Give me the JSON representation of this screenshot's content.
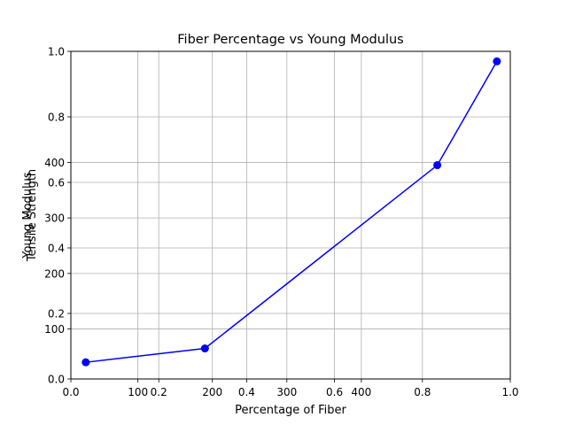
{
  "chart_data": {
    "type": "line",
    "title": "Fiber Percentage vs Young Modulus",
    "xlabel": "Percentage of Fiber",
    "ylabel": "Young Modulus",
    "ylabel_overlay": "Tensile Strength",
    "grid": true,
    "series": [
      {
        "color": "#0000ff",
        "marker": "circle",
        "x": [
          30,
          190,
          502,
          582
        ],
        "y": [
          40,
          65,
          395,
          582
        ]
      }
    ],
    "data_axes": {
      "xlim": [
        10,
        600
      ],
      "ylim": [
        10,
        600
      ],
      "xticks": [
        100,
        200,
        300,
        400
      ],
      "xtick_labels": [
        "100",
        "200",
        "300",
        "400"
      ],
      "yticks": [
        100,
        200,
        300,
        400
      ],
      "ytick_labels": [
        "100",
        "200",
        "300",
        "400"
      ]
    },
    "overlay_axes": {
      "xlim": [
        0.0,
        1.0
      ],
      "ylim": [
        0.0,
        1.0
      ],
      "xticks": [
        0.0,
        0.2,
        0.4,
        0.6,
        0.8,
        1.0
      ],
      "xtick_labels": [
        "0.0",
        "0.2",
        "0.4",
        "0.6",
        "0.8",
        "1.0"
      ],
      "yticks": [
        0.0,
        0.2,
        0.4,
        0.6,
        0.8,
        1.0
      ],
      "ytick_labels": [
        "0.0",
        "0.2",
        "0.4",
        "0.6",
        "0.8",
        "1.0"
      ]
    },
    "colors": {
      "line": "#0000ff",
      "grid": "#b0b0b0",
      "axes": "#000000"
    }
  }
}
